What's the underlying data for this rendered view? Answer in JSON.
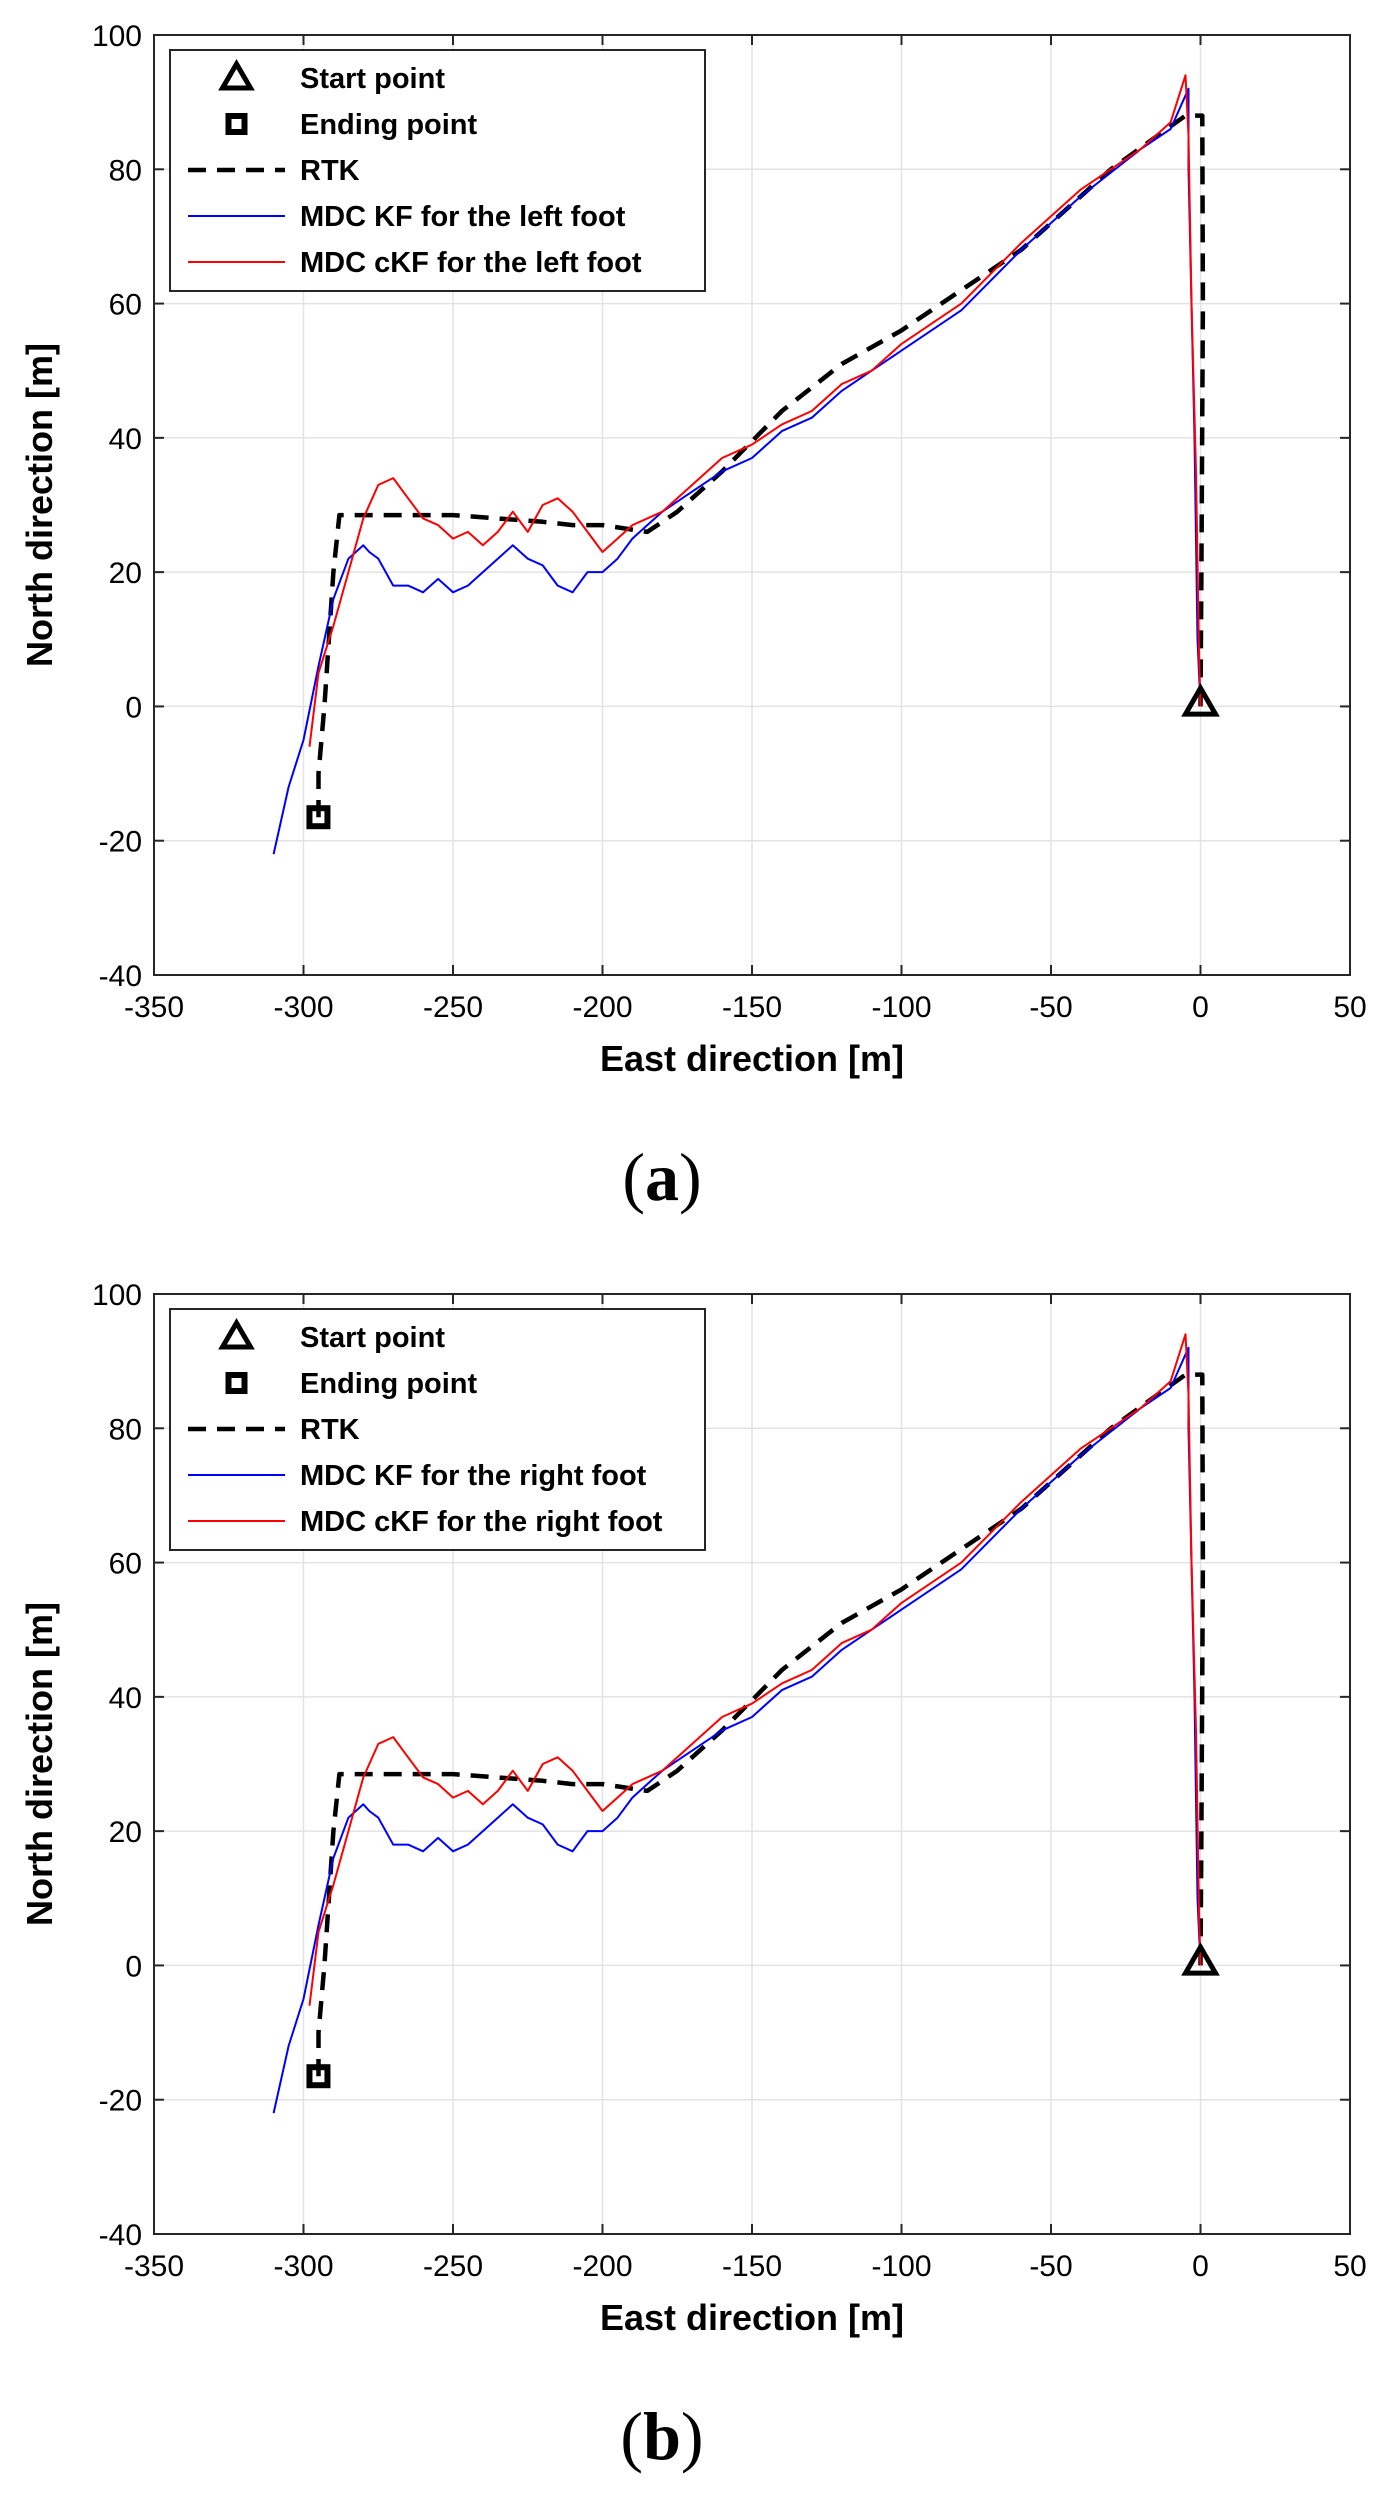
{
  "chart_data": [
    {
      "type": "line",
      "panel_label": "a",
      "caption_left": "(",
      "caption_letter": "a",
      "caption_right": ")",
      "xlabel": "East direction [m]",
      "ylabel": "North direction [m]",
      "xlim": [
        -350,
        50
      ],
      "ylim": [
        -40,
        100
      ],
      "xticks": [
        -350,
        -300,
        -250,
        -200,
        -150,
        -100,
        -50,
        0,
        50
      ],
      "yticks": [
        -40,
        -20,
        0,
        20,
        40,
        60,
        80,
        100
      ],
      "grid": true,
      "legend_position": "top-left",
      "legend": [
        {
          "label": "Start point",
          "marker": "triangle",
          "color": "#000000"
        },
        {
          "label": "Ending point",
          "marker": "square",
          "color": "#000000"
        },
        {
          "label": "RTK",
          "style": "dashed",
          "color": "#000000"
        },
        {
          "label": "MDC KF for the left foot",
          "style": "solid",
          "color": "#0000ff"
        },
        {
          "label": "MDC cKF for the left foot",
          "style": "solid",
          "color": "#ff0000"
        }
      ],
      "markers": {
        "start": [
          0,
          0.5
        ],
        "end": [
          -295,
          -16.5
        ]
      },
      "series": [
        {
          "name": "RTK",
          "color": "#000000",
          "dash": true,
          "x": [
            0,
            0.3,
            0.8,
            0.6,
            -5,
            -30,
            -60,
            -100,
            -120,
            -140,
            -160,
            -175,
            -185,
            -200,
            -210,
            -220,
            -250,
            -280,
            -288,
            -290,
            -293,
            -295,
            -295
          ],
          "y": [
            0,
            20,
            60,
            88,
            88,
            80,
            68,
            56,
            51,
            44,
            35,
            29,
            26,
            27,
            27,
            27.5,
            28.5,
            28.5,
            28.5,
            20,
            0,
            -10,
            -16.5
          ]
        },
        {
          "name": "MDC KF",
          "color": "#0000ff",
          "dash": false,
          "x": [
            0,
            -1,
            -2,
            -3,
            -4,
            -4,
            -10,
            -20,
            -40,
            -60,
            -80,
            -100,
            -110,
            -120,
            -130,
            -140,
            -150,
            -160,
            -170,
            -180,
            -185,
            -190,
            -195,
            -200,
            -205,
            -210,
            -215,
            -220,
            -225,
            -230,
            -235,
            -240,
            -245,
            -250,
            -255,
            -260,
            -265,
            -270,
            -275,
            -278,
            -280,
            -285,
            -290,
            -295,
            -300,
            -305,
            -310
          ],
          "y": [
            0,
            10,
            40,
            60,
            80,
            92,
            86,
            83,
            76,
            68,
            59,
            53,
            50,
            47,
            43,
            41,
            37,
            35,
            32,
            29,
            27,
            25,
            22,
            20,
            20,
            17,
            18,
            21,
            22,
            24,
            22,
            20,
            18,
            17,
            19,
            17,
            18,
            18,
            22,
            23,
            24,
            22,
            16,
            6,
            -5,
            -12,
            -22
          ]
        },
        {
          "name": "MDC cKF",
          "color": "#ff0000",
          "dash": false,
          "x": [
            0,
            -0.5,
            -1.5,
            -3,
            -4,
            -5,
            -10,
            -20,
            -40,
            -60,
            -80,
            -100,
            -110,
            -120,
            -130,
            -140,
            -150,
            -160,
            -170,
            -180,
            -185,
            -190,
            -195,
            -200,
            -205,
            -210,
            -215,
            -220,
            -225,
            -230,
            -235,
            -240,
            -245,
            -250,
            -255,
            -260,
            -265,
            -270,
            -275,
            -280,
            -285,
            -290,
            -295,
            -298
          ],
          "y": [
            0,
            8,
            35,
            60,
            85,
            94,
            87,
            83,
            77,
            69,
            60,
            54,
            50,
            48,
            44,
            42,
            39,
            37,
            33,
            29,
            28,
            27,
            25,
            23,
            26,
            29,
            31,
            30,
            26,
            29,
            26,
            24,
            26,
            25,
            27,
            28,
            31,
            34,
            33,
            28,
            20,
            12,
            5,
            -6
          ]
        }
      ]
    },
    {
      "type": "line",
      "panel_label": "b",
      "caption_left": "(",
      "caption_letter": "b",
      "caption_right": ")",
      "xlabel": "East direction [m]",
      "ylabel": "North direction [m]",
      "xlim": [
        -350,
        50
      ],
      "ylim": [
        -40,
        100
      ],
      "xticks": [
        -350,
        -300,
        -250,
        -200,
        -150,
        -100,
        -50,
        0,
        50
      ],
      "yticks": [
        -40,
        -20,
        0,
        20,
        40,
        60,
        80,
        100
      ],
      "grid": true,
      "legend_position": "top-left",
      "legend": [
        {
          "label": "Start point",
          "marker": "triangle",
          "color": "#000000"
        },
        {
          "label": "Ending point",
          "marker": "square",
          "color": "#000000"
        },
        {
          "label": "RTK",
          "style": "dashed",
          "color": "#000000"
        },
        {
          "label": "MDC KF for the right foot",
          "style": "solid",
          "color": "#0000ff"
        },
        {
          "label": "MDC cKF for the right foot",
          "style": "solid",
          "color": "#ff0000"
        }
      ],
      "markers": {
        "start": [
          0,
          0.5
        ],
        "end": [
          -295,
          -16.5
        ]
      },
      "series": [
        {
          "name": "RTK",
          "color": "#000000",
          "dash": true,
          "x": [
            0,
            0.3,
            0.8,
            0.6,
            -5,
            -30,
            -60,
            -100,
            -120,
            -140,
            -160,
            -175,
            -185,
            -200,
            -210,
            -220,
            -250,
            -280,
            -288,
            -290,
            -293,
            -295,
            -295
          ],
          "y": [
            0,
            20,
            60,
            88,
            88,
            80,
            68,
            56,
            51,
            44,
            35,
            29,
            26,
            27,
            27,
            27.5,
            28.5,
            28.5,
            28.5,
            20,
            0,
            -10,
            -16.5
          ]
        },
        {
          "name": "MDC KF",
          "color": "#0000ff",
          "dash": false,
          "x": [
            0,
            -1,
            -2,
            -3,
            -4,
            -4,
            -10,
            -20,
            -40,
            -60,
            -80,
            -100,
            -110,
            -120,
            -130,
            -140,
            -150,
            -160,
            -170,
            -180,
            -185,
            -190,
            -195,
            -200,
            -205,
            -210,
            -215,
            -220,
            -225,
            -230,
            -235,
            -240,
            -245,
            -250,
            -255,
            -260,
            -265,
            -270,
            -275,
            -278,
            -280,
            -285,
            -290,
            -295,
            -300,
            -305,
            -310
          ],
          "y": [
            0,
            10,
            40,
            60,
            80,
            92,
            86,
            83,
            76,
            68,
            59,
            53,
            50,
            47,
            43,
            41,
            37,
            35,
            32,
            29,
            27,
            25,
            22,
            20,
            20,
            17,
            18,
            21,
            22,
            24,
            22,
            20,
            18,
            17,
            19,
            17,
            18,
            18,
            22,
            23,
            24,
            22,
            16,
            6,
            -5,
            -12,
            -22
          ]
        },
        {
          "name": "MDC cKF",
          "color": "#ff0000",
          "dash": false,
          "x": [
            0,
            -0.5,
            -1.5,
            -3,
            -4,
            -5,
            -10,
            -20,
            -40,
            -60,
            -80,
            -100,
            -110,
            -120,
            -130,
            -140,
            -150,
            -160,
            -170,
            -180,
            -185,
            -190,
            -195,
            -200,
            -205,
            -210,
            -215,
            -220,
            -225,
            -230,
            -235,
            -240,
            -245,
            -250,
            -255,
            -260,
            -265,
            -270,
            -275,
            -280,
            -285,
            -290,
            -295,
            -298
          ],
          "y": [
            0,
            8,
            35,
            60,
            85,
            94,
            87,
            83,
            77,
            69,
            60,
            54,
            50,
            48,
            44,
            42,
            39,
            37,
            33,
            29,
            28,
            27,
            25,
            23,
            26,
            29,
            31,
            30,
            26,
            29,
            26,
            24,
            26,
            25,
            27,
            28,
            31,
            34,
            33,
            28,
            20,
            12,
            5,
            -6
          ]
        }
      ]
    }
  ]
}
